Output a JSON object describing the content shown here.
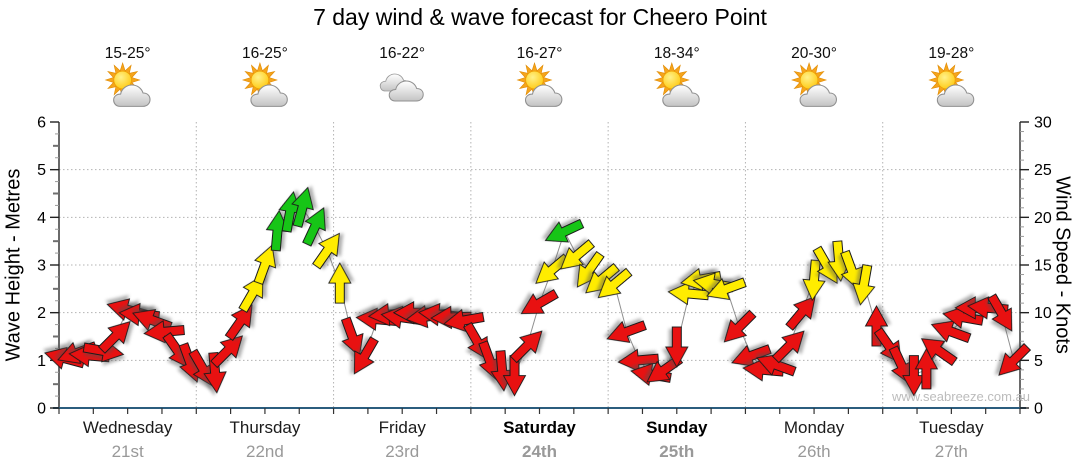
{
  "chart_data": {
    "type": "line",
    "title": "7 day wind & wave forecast for Cheero Point",
    "watermark": "www.seabreeze.com.au",
    "ylabel_left": "Wave Height - Metres",
    "ylabel_right": "Wind Speed - Knots",
    "ylim_left": [
      0,
      6
    ],
    "ylim_right": [
      0,
      30
    ],
    "left_ticks": [
      0,
      1,
      2,
      3,
      4,
      5,
      6
    ],
    "right_ticks": [
      0,
      5,
      10,
      15,
      20,
      25,
      30
    ],
    "grid": "dotted",
    "samples_per_day": 11,
    "angle_convention": "screen degrees: 0=arrow points right(E), 90=down(S), 180=left(W), 270=up(N)",
    "strength_palette": {
      "red": "#e81111",
      "yellow": "#ffec00",
      "green": "#17c517"
    },
    "days": [
      {
        "name": "Wednesday",
        "date": "21st",
        "temps": "15-25°",
        "icon": "sun-cloud",
        "weekend": false,
        "wind_knots": [
          5.2,
          5.8,
          5.5,
          6,
          7.5,
          10.3,
          9.8,
          9.2,
          8,
          6,
          4.8
        ],
        "wind_angles": [
          195,
          160,
          185,
          10,
          315,
          195,
          185,
          200,
          175,
          55,
          70
        ],
        "wind_colors": [
          "red",
          "red",
          "red",
          "red",
          "red",
          "red",
          "red",
          "red",
          "red",
          "red",
          "red"
        ]
      },
      {
        "name": "Thursday",
        "date": "22nd",
        "temps": "16-25°",
        "icon": "sun-cloud",
        "weekend": false,
        "wind_knots": [
          4.2,
          3.8,
          6,
          9,
          12,
          15,
          18.5,
          20.5,
          21,
          19,
          16.5
        ],
        "wind_angles": [
          60,
          85,
          315,
          305,
          300,
          290,
          275,
          280,
          285,
          295,
          305
        ],
        "wind_colors": [
          "red",
          "red",
          "red",
          "red",
          "yellow",
          "yellow",
          "green",
          "green",
          "green",
          "green",
          "yellow"
        ]
      },
      {
        "name": "Friday",
        "date": "23rd",
        "temps": "16-22°",
        "icon": "clouds",
        "weekend": false,
        "wind_knots": [
          13,
          7.5,
          5.5,
          9.3,
          9.8,
          9.5,
          10,
          9.6,
          9.8,
          9.5,
          9.2
        ],
        "wind_angles": [
          270,
          70,
          120,
          185,
          175,
          188,
          180,
          172,
          186,
          178,
          170
        ],
        "wind_colors": [
          "yellow",
          "red",
          "red",
          "red",
          "red",
          "red",
          "red",
          "red",
          "red",
          "red",
          "red"
        ]
      },
      {
        "name": "Saturday",
        "date": "24th",
        "temps": "16-27°",
        "icon": "sun-cloud",
        "weekend": true,
        "wind_knots": [
          7,
          5,
          4,
          3.5,
          6.5,
          11,
          14.5,
          18.5,
          16,
          14.5,
          13.5
        ],
        "wind_angles": [
          60,
          70,
          85,
          90,
          315,
          150,
          140,
          155,
          140,
          125,
          140
        ],
        "wind_colors": [
          "red",
          "red",
          "red",
          "red",
          "red",
          "red",
          "yellow",
          "green",
          "yellow",
          "yellow",
          "yellow"
        ]
      },
      {
        "name": "Sunday",
        "date": "25th",
        "temps": "18-34°",
        "icon": "sun-cloud",
        "weekend": true,
        "wind_knots": [
          13,
          8,
          5,
          3.5,
          4,
          6.5,
          12,
          13.5,
          13,
          12.5,
          8.5
        ],
        "wind_angles": [
          140,
          160,
          175,
          190,
          145,
          90,
          185,
          170,
          190,
          160,
          135
        ],
        "wind_colors": [
          "yellow",
          "red",
          "red",
          "red",
          "red",
          "red",
          "yellow",
          "yellow",
          "yellow",
          "yellow",
          "red"
        ]
      },
      {
        "name": "Monday",
        "date": "26th",
        "temps": "20-30°",
        "icon": "sun-cloud",
        "weekend": false,
        "wind_knots": [
          5.5,
          4,
          4.5,
          6.5,
          10,
          13.5,
          15,
          15.5,
          14.5,
          13,
          8.5
        ],
        "wind_angles": [
          160,
          185,
          200,
          315,
          310,
          95,
          60,
          85,
          70,
          100,
          270
        ],
        "wind_colors": [
          "red",
          "red",
          "red",
          "red",
          "red",
          "yellow",
          "yellow",
          "yellow",
          "yellow",
          "yellow",
          "red"
        ]
      },
      {
        "name": "Tuesday",
        "date": "27th",
        "temps": "19-28°",
        "icon": "sun-cloud",
        "weekend": false,
        "wind_knots": [
          6.5,
          4.5,
          3.5,
          4,
          6,
          8,
          9.5,
          10.5,
          10.5,
          10,
          5
        ],
        "wind_angles": [
          55,
          65,
          90,
          270,
          215,
          200,
          190,
          180,
          185,
          60,
          135
        ],
        "wind_colors": [
          "red",
          "red",
          "red",
          "red",
          "red",
          "red",
          "red",
          "red",
          "red",
          "red",
          "red"
        ]
      }
    ]
  }
}
